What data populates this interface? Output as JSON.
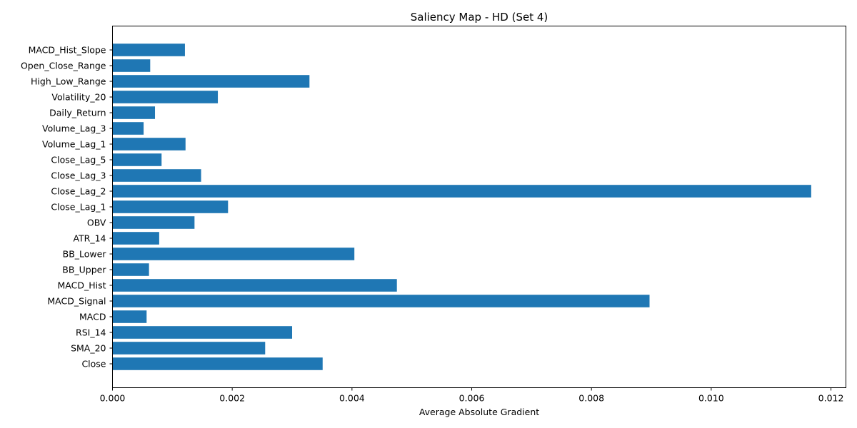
{
  "chart_data": {
    "type": "bar",
    "orientation": "horizontal",
    "title": "Saliency Map - HD (Set 4)",
    "xlabel": "Average Absolute Gradient",
    "ylabel": "",
    "xlim": [
      0,
      0.01225
    ],
    "xticks": [
      0.0,
      0.002,
      0.004,
      0.006,
      0.008,
      0.01,
      0.012
    ],
    "xtick_labels": [
      "0.000",
      "0.002",
      "0.004",
      "0.006",
      "0.008",
      "0.010",
      "0.012"
    ],
    "categories": [
      "Close",
      "SMA_20",
      "RSI_14",
      "MACD",
      "MACD_Signal",
      "MACD_Hist",
      "BB_Upper",
      "BB_Lower",
      "ATR_14",
      "OBV",
      "Close_Lag_1",
      "Close_Lag_2",
      "Close_Lag_3",
      "Close_Lag_5",
      "Volume_Lag_1",
      "Volume_Lag_3",
      "Daily_Return",
      "Volatility_20",
      "High_Low_Range",
      "Open_Close_Range",
      "MACD_Hist_Slope"
    ],
    "values": [
      0.00351,
      0.00255,
      0.003,
      0.00057,
      0.00897,
      0.00475,
      0.00061,
      0.00404,
      0.00078,
      0.00137,
      0.00193,
      0.01167,
      0.00148,
      0.00082,
      0.00122,
      0.00052,
      0.00071,
      0.00176,
      0.00329,
      0.00063,
      0.00121
    ],
    "bar_color": "#1f77b4",
    "grid": false,
    "legend": false
  }
}
